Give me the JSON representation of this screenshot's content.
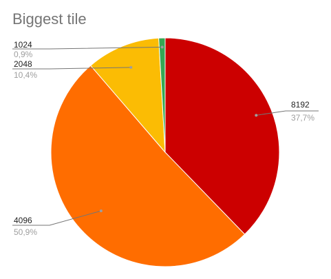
{
  "chart_data": {
    "type": "pie",
    "title": "Biggest tile",
    "start_angle": "top, clockwise",
    "slices": [
      {
        "name": "8192",
        "value": 37.7,
        "percent_label": "37,7%",
        "color": "#cc0000",
        "label_side": "right"
      },
      {
        "name": "4096",
        "value": 50.9,
        "percent_label": "50,9%",
        "color": "#ff6d00",
        "label_side": "left"
      },
      {
        "name": "2048",
        "value": 10.4,
        "percent_label": "10,4%",
        "color": "#fbbc04",
        "label_side": "left"
      },
      {
        "name": "1024",
        "value": 0.9,
        "percent_label": "0,9%",
        "color": "#34a853",
        "label_side": "left"
      }
    ]
  }
}
